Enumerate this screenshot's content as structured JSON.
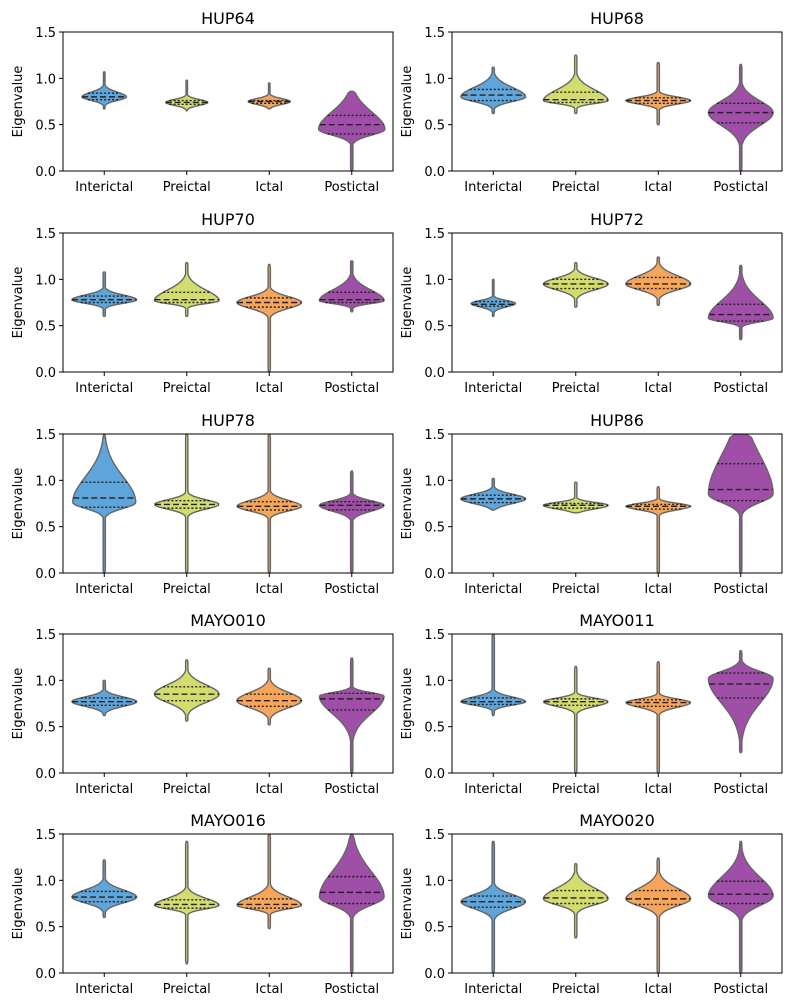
{
  "figure": {
    "ylabel": "Eigenvalue"
  },
  "chart_data": [
    {
      "type": "violin",
      "title": "HUP64",
      "ylabel": "Eigenvalue",
      "ylim": [
        0,
        1.5
      ],
      "yticks": [
        "0.0",
        "0.5",
        "1.0",
        "1.5"
      ],
      "categories": [
        "Interictal",
        "Preictal",
        "Ictal",
        "Postictal"
      ],
      "colors": [
        "#5DA5DA",
        "#D4DC6E",
        "#F5A65B",
        "#A04FA8"
      ],
      "violins": [
        {
          "min": 0.67,
          "max": 1.07,
          "q1": 0.77,
          "median": 0.8,
          "q3": 0.84,
          "mode": 0.8,
          "maxw": 0.55
        },
        {
          "min": 0.65,
          "max": 0.98,
          "q1": 0.72,
          "median": 0.74,
          "q3": 0.76,
          "mode": 0.74,
          "maxw": 0.52
        },
        {
          "min": 0.67,
          "max": 0.95,
          "q1": 0.73,
          "median": 0.75,
          "q3": 0.76,
          "mode": 0.75,
          "maxw": 0.52
        },
        {
          "min": 0.0,
          "max": 0.86,
          "q1": 0.4,
          "median": 0.5,
          "q3": 0.6,
          "mode": 0.45,
          "maxw": 0.82
        }
      ]
    },
    {
      "type": "violin",
      "title": "HUP68",
      "ylabel": "Eigenvalue",
      "ylim": [
        0,
        1.5
      ],
      "yticks": [
        "0.0",
        "0.5",
        "1.0",
        "1.5"
      ],
      "categories": [
        "Interictal",
        "Preictal",
        "Ictal",
        "Postictal"
      ],
      "colors": [
        "#5DA5DA",
        "#D4DC6E",
        "#F5A65B",
        "#A04FA8"
      ],
      "violins": [
        {
          "min": 0.62,
          "max": 1.12,
          "q1": 0.76,
          "median": 0.82,
          "q3": 0.88,
          "mode": 0.8,
          "maxw": 0.8
        },
        {
          "min": 0.62,
          "max": 1.25,
          "q1": 0.74,
          "median": 0.77,
          "q3": 0.85,
          "mode": 0.76,
          "maxw": 0.8
        },
        {
          "min": 0.5,
          "max": 1.17,
          "q1": 0.73,
          "median": 0.76,
          "q3": 0.79,
          "mode": 0.76,
          "maxw": 0.8
        },
        {
          "min": 0.0,
          "max": 1.15,
          "q1": 0.52,
          "median": 0.63,
          "q3": 0.73,
          "mode": 0.63,
          "maxw": 0.8
        }
      ]
    },
    {
      "type": "violin",
      "title": "HUP70",
      "ylabel": "Eigenvalue",
      "ylim": [
        0,
        1.5
      ],
      "yticks": [
        "0.0",
        "0.5",
        "1.0",
        "1.5"
      ],
      "categories": [
        "Interictal",
        "Preictal",
        "Ictal",
        "Postictal"
      ],
      "colors": [
        "#5DA5DA",
        "#D4DC6E",
        "#F5A65B",
        "#A04FA8"
      ],
      "violins": [
        {
          "min": 0.6,
          "max": 1.08,
          "q1": 0.75,
          "median": 0.78,
          "q3": 0.82,
          "mode": 0.78,
          "maxw": 0.8
        },
        {
          "min": 0.6,
          "max": 1.18,
          "q1": 0.75,
          "median": 0.78,
          "q3": 0.86,
          "mode": 0.77,
          "maxw": 0.8
        },
        {
          "min": 0.0,
          "max": 1.16,
          "q1": 0.7,
          "median": 0.75,
          "q3": 0.8,
          "mode": 0.75,
          "maxw": 0.8
        },
        {
          "min": 0.65,
          "max": 1.2,
          "q1": 0.75,
          "median": 0.78,
          "q3": 0.86,
          "mode": 0.77,
          "maxw": 0.8
        }
      ]
    },
    {
      "type": "violin",
      "title": "HUP72",
      "ylabel": "Eigenvalue",
      "ylim": [
        0,
        1.5
      ],
      "yticks": [
        "0.0",
        "0.5",
        "1.0",
        "1.5"
      ],
      "categories": [
        "Interictal",
        "Preictal",
        "Ictal",
        "Postictal"
      ],
      "colors": [
        "#5DA5DA",
        "#D4DC6E",
        "#F5A65B",
        "#A04FA8"
      ],
      "violins": [
        {
          "min": 0.6,
          "max": 1.0,
          "q1": 0.71,
          "median": 0.73,
          "q3": 0.76,
          "mode": 0.74,
          "maxw": 0.55
        },
        {
          "min": 0.7,
          "max": 1.18,
          "q1": 0.9,
          "median": 0.95,
          "q3": 1.0,
          "mode": 0.95,
          "maxw": 0.8
        },
        {
          "min": 0.72,
          "max": 1.24,
          "q1": 0.9,
          "median": 0.95,
          "q3": 1.02,
          "mode": 0.95,
          "maxw": 0.8
        },
        {
          "min": 0.35,
          "max": 1.15,
          "q1": 0.55,
          "median": 0.62,
          "q3": 0.73,
          "mode": 0.58,
          "maxw": 0.8
        }
      ]
    },
    {
      "type": "violin",
      "title": "HUP78",
      "ylabel": "Eigenvalue",
      "ylim": [
        0,
        1.5
      ],
      "yticks": [
        "0.0",
        "0.5",
        "1.0",
        "1.5"
      ],
      "categories": [
        "Interictal",
        "Preictal",
        "Ictal",
        "Postictal"
      ],
      "colors": [
        "#5DA5DA",
        "#D4DC6E",
        "#F5A65B",
        "#A04FA8"
      ],
      "violins": [
        {
          "min": 0.0,
          "max": 1.5,
          "q1": 0.71,
          "median": 0.81,
          "q3": 0.98,
          "mode": 0.76,
          "maxw": 0.78
        },
        {
          "min": 0.0,
          "max": 1.5,
          "q1": 0.7,
          "median": 0.74,
          "q3": 0.78,
          "mode": 0.74,
          "maxw": 0.8
        },
        {
          "min": 0.0,
          "max": 1.5,
          "q1": 0.68,
          "median": 0.72,
          "q3": 0.77,
          "mode": 0.72,
          "maxw": 0.8
        },
        {
          "min": 0.0,
          "max": 1.1,
          "q1": 0.68,
          "median": 0.73,
          "q3": 0.77,
          "mode": 0.73,
          "maxw": 0.8
        }
      ]
    },
    {
      "type": "violin",
      "title": "HUP86",
      "ylabel": "Eigenvalue",
      "ylim": [
        0,
        1.5
      ],
      "yticks": [
        "0.0",
        "0.5",
        "1.0",
        "1.5"
      ],
      "categories": [
        "Interictal",
        "Preictal",
        "Ictal",
        "Postictal"
      ],
      "colors": [
        "#5DA5DA",
        "#D4DC6E",
        "#F5A65B",
        "#A04FA8"
      ],
      "violins": [
        {
          "min": 0.68,
          "max": 1.02,
          "q1": 0.76,
          "median": 0.8,
          "q3": 0.84,
          "mode": 0.8,
          "maxw": 0.8
        },
        {
          "min": 0.65,
          "max": 0.98,
          "q1": 0.7,
          "median": 0.73,
          "q3": 0.75,
          "mode": 0.73,
          "maxw": 0.8
        },
        {
          "min": 0.0,
          "max": 0.93,
          "q1": 0.69,
          "median": 0.72,
          "q3": 0.74,
          "mode": 0.72,
          "maxw": 0.8
        },
        {
          "min": 0.0,
          "max": 1.5,
          "q1": 0.78,
          "median": 0.9,
          "q3": 1.18,
          "mode": 0.85,
          "maxw": 0.8
        }
      ]
    },
    {
      "type": "violin",
      "title": "MAYO010",
      "ylabel": "Eigenvalue",
      "ylim": [
        0,
        1.5
      ],
      "yticks": [
        "0.0",
        "0.5",
        "1.0",
        "1.5"
      ],
      "categories": [
        "Interictal",
        "Preictal",
        "Ictal",
        "Postictal"
      ],
      "colors": [
        "#5DA5DA",
        "#D4DC6E",
        "#F5A65B",
        "#A04FA8"
      ],
      "violins": [
        {
          "min": 0.62,
          "max": 1.0,
          "q1": 0.73,
          "median": 0.77,
          "q3": 0.81,
          "mode": 0.77,
          "maxw": 0.8
        },
        {
          "min": 0.56,
          "max": 1.22,
          "q1": 0.78,
          "median": 0.85,
          "q3": 0.93,
          "mode": 0.85,
          "maxw": 0.8
        },
        {
          "min": 0.52,
          "max": 1.13,
          "q1": 0.72,
          "median": 0.78,
          "q3": 0.85,
          "mode": 0.78,
          "maxw": 0.8
        },
        {
          "min": 0.0,
          "max": 1.24,
          "q1": 0.68,
          "median": 0.8,
          "q3": 0.86,
          "mode": 0.83,
          "maxw": 0.8
        }
      ]
    },
    {
      "type": "violin",
      "title": "MAYO011",
      "ylabel": "Eigenvalue",
      "ylim": [
        0,
        1.5
      ],
      "yticks": [
        "0.0",
        "0.5",
        "1.0",
        "1.5"
      ],
      "categories": [
        "Interictal",
        "Preictal",
        "Ictal",
        "Postictal"
      ],
      "colors": [
        "#5DA5DA",
        "#D4DC6E",
        "#F5A65B",
        "#A04FA8"
      ],
      "violins": [
        {
          "min": 0.62,
          "max": 1.5,
          "q1": 0.74,
          "median": 0.77,
          "q3": 0.81,
          "mode": 0.77,
          "maxw": 0.8
        },
        {
          "min": 0.0,
          "max": 1.15,
          "q1": 0.73,
          "median": 0.77,
          "q3": 0.8,
          "mode": 0.77,
          "maxw": 0.8
        },
        {
          "min": 0.0,
          "max": 1.2,
          "q1": 0.72,
          "median": 0.76,
          "q3": 0.79,
          "mode": 0.76,
          "maxw": 0.8
        },
        {
          "min": 0.22,
          "max": 1.32,
          "q1": 0.81,
          "median": 0.96,
          "q3": 1.08,
          "mode": 1.02,
          "maxw": 0.8
        }
      ]
    },
    {
      "type": "violin",
      "title": "MAYO016",
      "ylabel": "Eigenvalue",
      "ylim": [
        0,
        1.5
      ],
      "yticks": [
        "0.0",
        "0.5",
        "1.0",
        "1.5"
      ],
      "categories": [
        "Interictal",
        "Preictal",
        "Ictal",
        "Postictal"
      ],
      "colors": [
        "#5DA5DA",
        "#D4DC6E",
        "#F5A65B",
        "#A04FA8"
      ],
      "violins": [
        {
          "min": 0.6,
          "max": 1.22,
          "q1": 0.77,
          "median": 0.82,
          "q3": 0.88,
          "mode": 0.82,
          "maxw": 0.8
        },
        {
          "min": 0.1,
          "max": 1.42,
          "q1": 0.7,
          "median": 0.74,
          "q3": 0.79,
          "mode": 0.73,
          "maxw": 0.8
        },
        {
          "min": 0.48,
          "max": 1.5,
          "q1": 0.7,
          "median": 0.74,
          "q3": 0.8,
          "mode": 0.73,
          "maxw": 0.8
        },
        {
          "min": 0.0,
          "max": 1.5,
          "q1": 0.75,
          "median": 0.87,
          "q3": 1.04,
          "mode": 0.82,
          "maxw": 0.8
        }
      ]
    },
    {
      "type": "violin",
      "title": "MAYO020",
      "ylabel": "Eigenvalue",
      "ylim": [
        0,
        1.5
      ],
      "yticks": [
        "0.0",
        "0.5",
        "1.0",
        "1.5"
      ],
      "categories": [
        "Interictal",
        "Preictal",
        "Ictal",
        "Postictal"
      ],
      "colors": [
        "#5DA5DA",
        "#D4DC6E",
        "#F5A65B",
        "#A04FA8"
      ],
      "violins": [
        {
          "min": 0.0,
          "max": 1.42,
          "q1": 0.71,
          "median": 0.77,
          "q3": 0.83,
          "mode": 0.77,
          "maxw": 0.8
        },
        {
          "min": 0.38,
          "max": 1.18,
          "q1": 0.75,
          "median": 0.81,
          "q3": 0.89,
          "mode": 0.8,
          "maxw": 0.8
        },
        {
          "min": 0.0,
          "max": 1.24,
          "q1": 0.74,
          "median": 0.8,
          "q3": 0.89,
          "mode": 0.8,
          "maxw": 0.8
        },
        {
          "min": 0.0,
          "max": 1.42,
          "q1": 0.75,
          "median": 0.85,
          "q3": 0.99,
          "mode": 0.83,
          "maxw": 0.8
        }
      ]
    }
  ]
}
